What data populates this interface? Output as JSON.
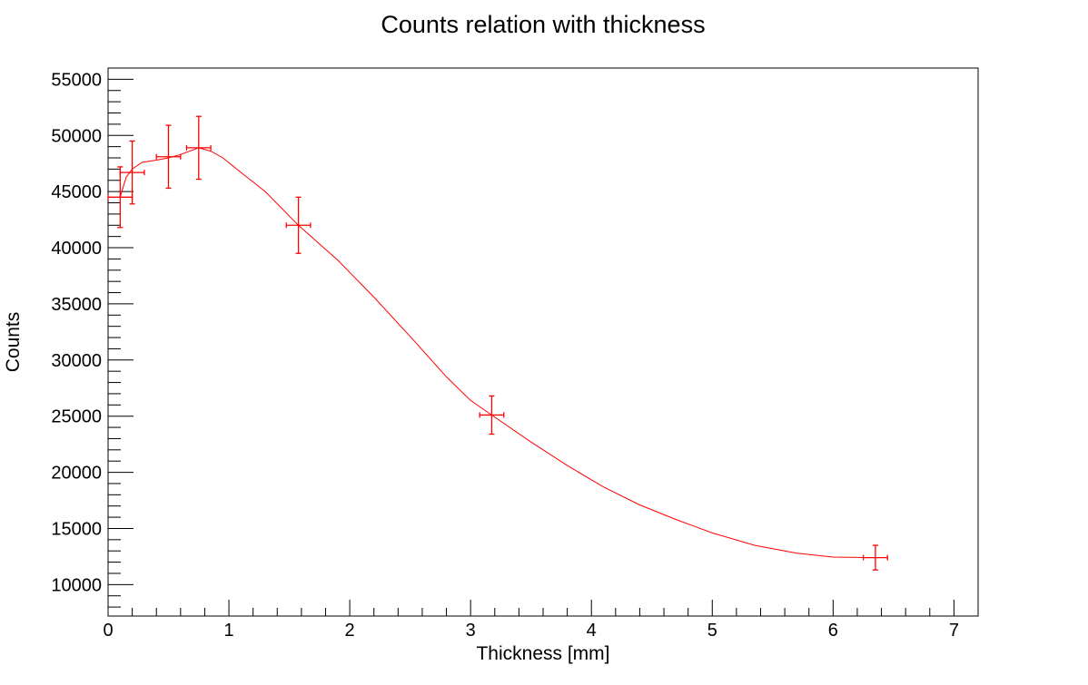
{
  "chart_data": {
    "type": "scatter",
    "title": "Counts relation with thickness",
    "xlabel": "Thickness [mm]",
    "ylabel": "Counts",
    "xlim": [
      0,
      7.2
    ],
    "ylim": [
      7200,
      56000
    ],
    "grid": false,
    "x_ticks": [
      0,
      1,
      2,
      3,
      4,
      5,
      6,
      7
    ],
    "x_tick_labels": [
      "0",
      "1",
      "2",
      "3",
      "4",
      "5",
      "6",
      "7"
    ],
    "y_ticks": [
      10000,
      15000,
      20000,
      25000,
      30000,
      35000,
      40000,
      45000,
      50000,
      55000
    ],
    "y_tick_labels": [
      "10000",
      "15000",
      "20000",
      "25000",
      "30000",
      "35000",
      "40000",
      "45000",
      "50000",
      "55000"
    ],
    "series": [
      {
        "kind": "points-with-errors",
        "color": "#ff0000",
        "points": [
          {
            "x": 0.1,
            "y": 44500,
            "xerr": 0.1,
            "yerr": 2700
          },
          {
            "x": 0.2,
            "y": 46700,
            "xerr": 0.1,
            "yerr": 2800
          },
          {
            "x": 0.5,
            "y": 48100,
            "xerr": 0.1,
            "yerr": 2800
          },
          {
            "x": 0.75,
            "y": 48900,
            "xerr": 0.1,
            "yerr": 2800
          },
          {
            "x": 1.575,
            "y": 42000,
            "xerr": 0.1,
            "yerr": 2500
          },
          {
            "x": 3.175,
            "y": 25100,
            "xerr": 0.1,
            "yerr": 1700
          },
          {
            "x": 6.35,
            "y": 12400,
            "xerr": 0.1,
            "yerr": 1100
          }
        ]
      },
      {
        "kind": "curve",
        "color": "#ff0000",
        "x": [
          0.1,
          0.15,
          0.2,
          0.28,
          0.4,
          0.5,
          0.6,
          0.75,
          0.85,
          0.95,
          1.1,
          1.3,
          1.575,
          1.9,
          2.2,
          2.5,
          2.8,
          3.0,
          3.175,
          3.5,
          3.8,
          4.1,
          4.4,
          4.7,
          5.0,
          5.35,
          5.7,
          6.0,
          6.35
        ],
        "y": [
          44500,
          46300,
          47000,
          47600,
          47800,
          48000,
          48300,
          48900,
          48600,
          48000,
          46700,
          45000,
          42000,
          38900,
          35600,
          32100,
          28500,
          26400,
          25100,
          22700,
          20600,
          18700,
          17100,
          15800,
          14600,
          13500,
          12800,
          12450,
          12400
        ]
      }
    ]
  }
}
